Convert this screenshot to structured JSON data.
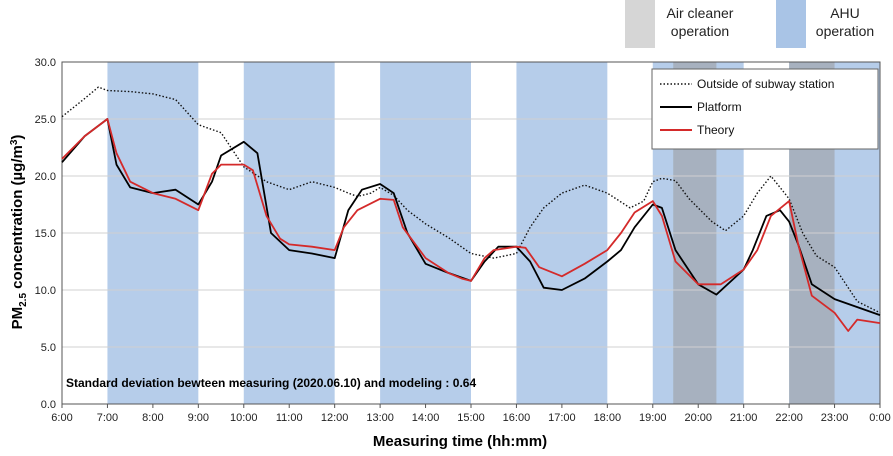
{
  "chart_data": {
    "type": "line",
    "xlabel": "Measuring time (hh:mm)",
    "ylabel_main": "PM",
    "ylabel_sub": "2.5",
    "ylabel_rest": " concentration (µg/m",
    "ylabel_sup": "3",
    "ylabel_end": ")",
    "x_tick_labels": [
      "6:00",
      "7:00",
      "8:00",
      "9:00",
      "10:00",
      "11:00",
      "12:00",
      "13:00",
      "14:00",
      "15:00",
      "16:00",
      "17:00",
      "18:00",
      "19:00",
      "20:00",
      "21:00",
      "22:00",
      "23:00",
      "0:00"
    ],
    "y_tick_labels": [
      "0.0",
      "5.0",
      "10.0",
      "15.0",
      "20.0",
      "25.0",
      "30.0"
    ],
    "xlim": [
      6,
      24
    ],
    "ylim": [
      0,
      30
    ],
    "annotation": "Standard deviation bewteen measuring (2020.06.10) and modeling : 0.64",
    "shaded_periods": {
      "ahu": [
        [
          7,
          9
        ],
        [
          10,
          12
        ],
        [
          13,
          15
        ],
        [
          16,
          18
        ],
        [
          19,
          21
        ],
        [
          22,
          24
        ]
      ],
      "air_cleaner": [
        [
          19.45,
          20.4
        ],
        [
          22,
          23
        ]
      ]
    },
    "top_legend": [
      {
        "label_lines": [
          "Air cleaner",
          "operation"
        ],
        "color": "#d6d6d6"
      },
      {
        "label_lines": [
          "AHU",
          "operation"
        ],
        "color": "#a9c4e6"
      }
    ],
    "series": [
      {
        "name": "Outside of subway station",
        "color": "#111111",
        "style": "dotted",
        "x": [
          6,
          6.5,
          6.8,
          7,
          7.5,
          8,
          8.5,
          9,
          9.5,
          10,
          10.5,
          11,
          11.5,
          12,
          12.3,
          12.5,
          12.8,
          13,
          13.3,
          13.6,
          14,
          14.5,
          15,
          15.5,
          16,
          16.3,
          16.6,
          17,
          17.5,
          18,
          18.5,
          18.8,
          19,
          19.2,
          19.5,
          19.8,
          20,
          20.3,
          20.6,
          21,
          21.3,
          21.6,
          22,
          22.3,
          22.6,
          23,
          23.5,
          24
        ],
        "y": [
          25.2,
          26.8,
          27.8,
          27.5,
          27.4,
          27.2,
          26.7,
          24.5,
          23.8,
          20.8,
          19.5,
          18.8,
          19.5,
          19.0,
          18.5,
          18.2,
          18.5,
          19.0,
          18.3,
          17.0,
          15.8,
          14.6,
          13.2,
          12.8,
          13.2,
          15.5,
          17.2,
          18.5,
          19.2,
          18.5,
          17.2,
          17.8,
          19.5,
          19.8,
          19.6,
          18.0,
          17.2,
          16.0,
          15.2,
          16.5,
          18.5,
          20.0,
          18.0,
          15.0,
          13.0,
          12.0,
          9.0,
          8.0
        ]
      },
      {
        "name": "Platform",
        "color": "#000000",
        "style": "solid",
        "x": [
          6,
          6.5,
          7,
          7.2,
          7.5,
          8,
          8.5,
          9,
          9.3,
          9.5,
          10,
          10.3,
          10.6,
          11,
          11.5,
          12,
          12.3,
          12.6,
          13,
          13.3,
          13.6,
          14,
          14.5,
          15,
          15.3,
          15.6,
          16,
          16.3,
          16.6,
          17,
          17.5,
          18,
          18.3,
          18.6,
          19,
          19.2,
          19.5,
          20,
          20.4,
          21,
          21.2,
          21.5,
          21.8,
          22,
          22.2,
          22.5,
          23,
          23.5,
          24
        ],
        "y": [
          21.2,
          23.5,
          25.0,
          21.0,
          19.0,
          18.5,
          18.8,
          17.5,
          19.5,
          21.8,
          23.0,
          22.0,
          15.0,
          13.5,
          13.2,
          12.8,
          17.0,
          18.8,
          19.3,
          18.5,
          15.0,
          12.3,
          11.5,
          10.8,
          12.5,
          13.8,
          13.8,
          12.5,
          10.2,
          10.0,
          11.0,
          12.5,
          13.5,
          15.5,
          17.5,
          17.2,
          13.5,
          10.5,
          9.6,
          11.8,
          13.5,
          16.5,
          17.0,
          16.0,
          14.0,
          10.5,
          9.2,
          8.5,
          7.8
        ]
      },
      {
        "name": "Theory",
        "color": "#d42a2a",
        "style": "solid",
        "x": [
          6,
          6.5,
          7,
          7.2,
          7.5,
          8,
          8.5,
          9,
          9.3,
          9.5,
          10,
          10.2,
          10.5,
          10.8,
          11,
          11.5,
          12,
          12.2,
          12.5,
          13,
          13.3,
          13.5,
          14,
          14.5,
          14.8,
          15,
          15.3,
          15.5,
          16,
          16.2,
          16.5,
          17,
          17.5,
          18,
          18.3,
          18.6,
          19,
          19.2,
          19.5,
          20,
          20.5,
          21,
          21.3,
          21.6,
          22,
          22.2,
          22.5,
          23,
          23.3,
          23.5,
          24
        ],
        "y": [
          21.5,
          23.5,
          25.0,
          22.0,
          19.5,
          18.5,
          18.0,
          17.0,
          20.2,
          21.0,
          21.0,
          20.5,
          16.5,
          14.5,
          14.0,
          13.8,
          13.5,
          15.5,
          17.0,
          18.0,
          17.9,
          15.5,
          12.8,
          11.5,
          11.0,
          10.8,
          12.8,
          13.5,
          13.8,
          13.7,
          12.0,
          11.2,
          12.3,
          13.5,
          15.0,
          16.8,
          17.8,
          16.5,
          12.5,
          10.5,
          10.5,
          11.8,
          13.5,
          16.5,
          17.8,
          14.0,
          9.5,
          8.0,
          6.4,
          7.4,
          7.1
        ]
      }
    ]
  }
}
